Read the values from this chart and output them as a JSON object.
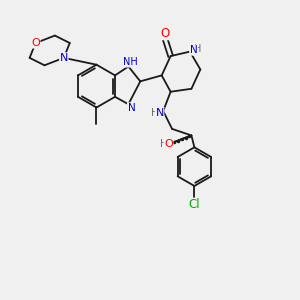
{
  "bg_color": "#f0f0f0",
  "bond_color": "#1a1a1a",
  "atom_colors": {
    "O": "#ff0000",
    "N": "#0000cc",
    "Cl": "#00aa00",
    "H": "#666666",
    "C": "#1a1a1a"
  },
  "figsize": [
    3.0,
    3.0
  ],
  "dpi": 100
}
